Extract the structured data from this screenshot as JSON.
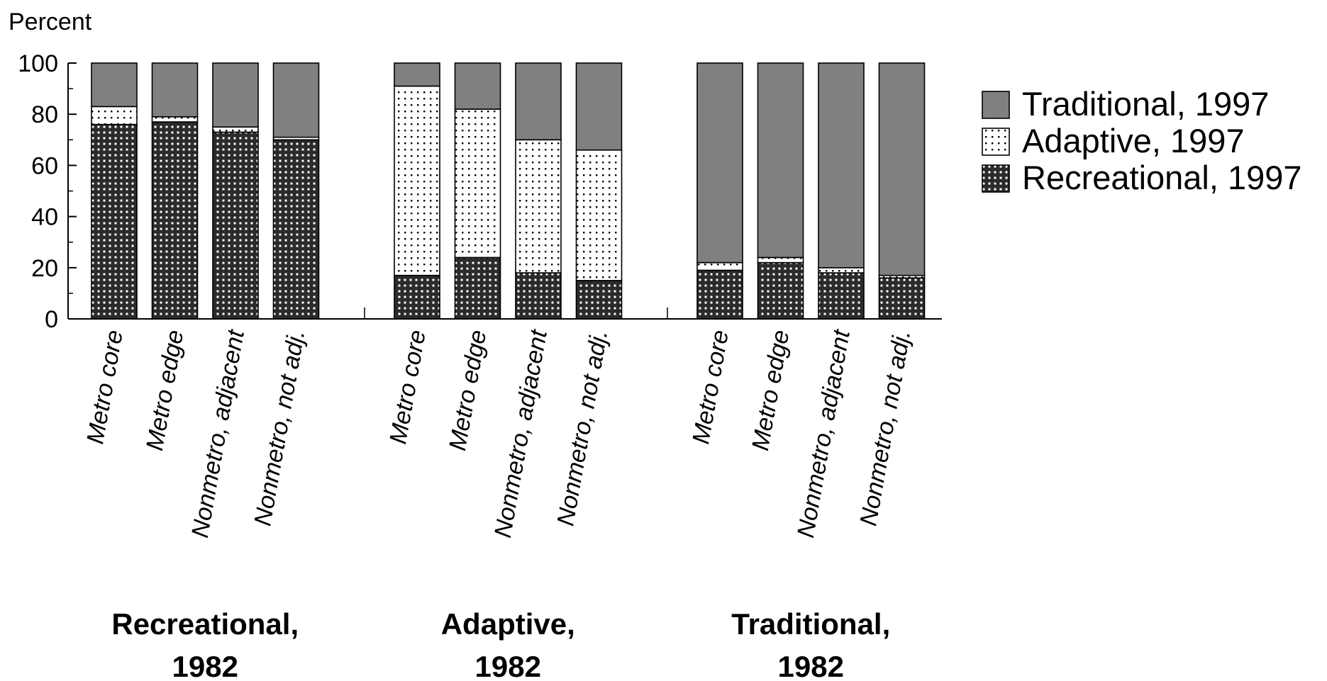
{
  "chart_data": {
    "type": "bar",
    "stacked": true,
    "ylabel": "Percent",
    "ylim": [
      0,
      100
    ],
    "yticks": [
      0,
      20,
      40,
      60,
      80,
      100
    ],
    "grid": false,
    "legend_position": "right",
    "groups": [
      {
        "label_line1": "Recreational,",
        "label_line2": "1982",
        "categories": [
          "Metro core",
          "Metro edge",
          "Nonmetro, adjacent",
          "Nonmetro, not adj."
        ]
      },
      {
        "label_line1": "Adaptive,",
        "label_line2": "1982",
        "categories": [
          "Metro core",
          "Metro edge",
          "Nonmetro, adjacent",
          "Nonmetro, not adj."
        ]
      },
      {
        "label_line1": "Traditional,",
        "label_line2": "1982",
        "categories": [
          "Metro core",
          "Metro edge",
          "Nonmetro, adjacent",
          "Nonmetro, not adj."
        ]
      }
    ],
    "series": [
      {
        "name": "Recreational, 1997",
        "pattern": "grid",
        "color": "#2b2b2b",
        "values": [
          76,
          77,
          73,
          70,
          17,
          24,
          18,
          15,
          19,
          22,
          18,
          16
        ]
      },
      {
        "name": "Adaptive, 1997",
        "pattern": "dots",
        "color": "#ffffff",
        "values": [
          7,
          2,
          2,
          1,
          74,
          58,
          52,
          51,
          3,
          2,
          2,
          1
        ]
      },
      {
        "name": "Traditional, 1997",
        "pattern": "solid",
        "color": "#808080",
        "values": [
          17,
          21,
          25,
          29,
          9,
          18,
          30,
          34,
          78,
          76,
          80,
          83
        ]
      }
    ]
  }
}
